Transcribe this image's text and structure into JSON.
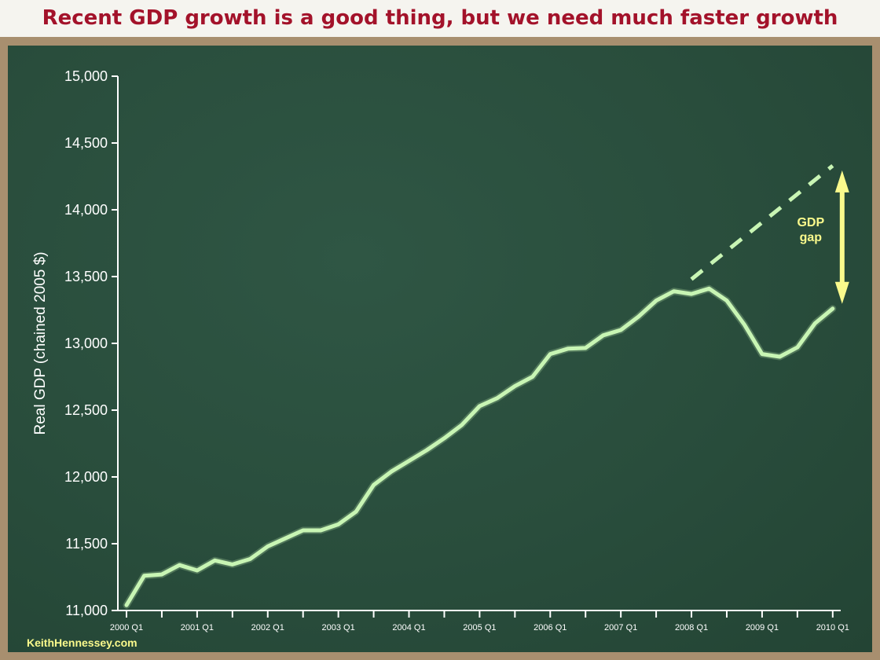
{
  "title": "Recent GDP growth is a good thing, but we need much faster growth",
  "credit": "KeithHennessey.com",
  "colors": {
    "title": "#a3122a",
    "board": "#294d3c",
    "frame": "#a88f6f",
    "series": "#c8f5b4",
    "annotation": "#fafa8c"
  },
  "chart_data": {
    "type": "line",
    "title": "Recent GDP growth is a good thing, but we need much faster growth",
    "xlabel": "",
    "ylabel": "Real GDP (chained 2005 $)",
    "ylim": [
      11000,
      15000
    ],
    "yticks": [
      11000,
      11500,
      12000,
      12500,
      13000,
      13500,
      14000,
      14500,
      15000
    ],
    "ytick_labels": [
      "11,000",
      "11,500",
      "12,000",
      "12,500",
      "13,000",
      "13,500",
      "14,000",
      "14,500",
      "15,000"
    ],
    "xtick_labels": [
      "2000 Q1",
      "2001 Q1",
      "2002 Q1",
      "2003 Q1",
      "2004 Q1",
      "2005 Q1",
      "2006 Q1",
      "2007 Q1",
      "2008 Q1",
      "2009 Q1",
      "2010 Q1"
    ],
    "grid": false,
    "series": [
      {
        "style": "solid",
        "x": [
          "2000 Q1",
          "2000 Q2",
          "2000 Q3",
          "2000 Q4",
          "2001 Q1",
          "2001 Q2",
          "2001 Q3",
          "2001 Q4",
          "2002 Q1",
          "2002 Q2",
          "2002 Q3",
          "2002 Q4",
          "2003 Q1",
          "2003 Q2",
          "2003 Q3",
          "2003 Q4",
          "2004 Q1",
          "2004 Q2",
          "2004 Q3",
          "2004 Q4",
          "2005 Q1",
          "2005 Q2",
          "2005 Q3",
          "2005 Q4",
          "2006 Q1",
          "2006 Q2",
          "2006 Q3",
          "2006 Q4",
          "2007 Q1",
          "2007 Q2",
          "2007 Q3",
          "2007 Q4",
          "2008 Q1",
          "2008 Q2",
          "2008 Q3",
          "2008 Q4",
          "2009 Q1",
          "2009 Q2",
          "2009 Q3",
          "2009 Q4",
          "2010 Q1"
        ],
        "values": [
          11040,
          11260,
          11270,
          11340,
          11300,
          11375,
          11345,
          11385,
          11480,
          11540,
          11600,
          11600,
          11645,
          11740,
          11940,
          12040,
          12120,
          12200,
          12290,
          12390,
          12530,
          12590,
          12680,
          12750,
          12920,
          12960,
          12965,
          13060,
          13100,
          13200,
          13320,
          13390,
          13370,
          13410,
          13320,
          13140,
          12920,
          12900,
          12970,
          13150,
          13260
        ]
      },
      {
        "style": "dashed",
        "x": [
          "2008 Q1",
          "2010 Q1"
        ],
        "values": [
          13480,
          14330
        ]
      }
    ],
    "annotations": [
      {
        "text_lines": [
          "GDP",
          "gap"
        ],
        "x": "2010 Q1",
        "from": 13260,
        "to": 14330
      }
    ]
  }
}
